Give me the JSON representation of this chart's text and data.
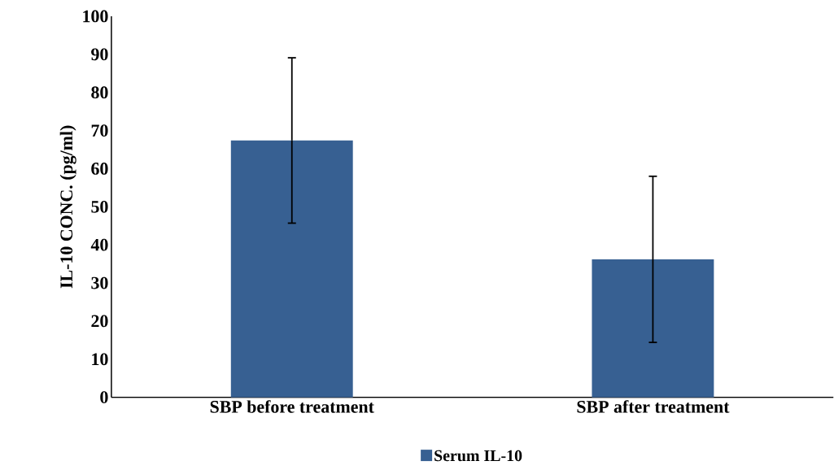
{
  "chart_data": {
    "type": "bar",
    "ylabel": "IL-10 CONC. (pg/ml)",
    "categories": [
      "SBP before treatment",
      "SBP after treatment"
    ],
    "series": [
      {
        "name": "Serum IL-10",
        "color": "#376092",
        "values": [
          67.4,
          36.2
        ],
        "errors": [
          21.7,
          21.8
        ]
      }
    ],
    "ylim": [
      0,
      100
    ],
    "yticks": [
      0,
      10,
      20,
      30,
      40,
      50,
      60,
      70,
      80,
      90,
      100
    ],
    "grid": false,
    "legend": "bottom"
  }
}
